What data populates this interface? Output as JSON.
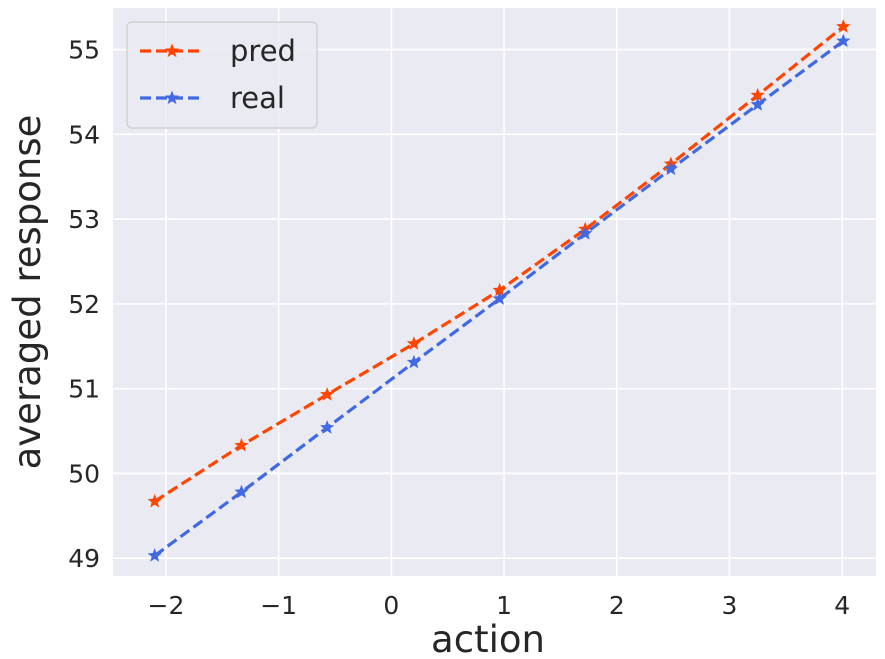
{
  "chart_data": {
    "type": "line",
    "xlabel": "action",
    "ylabel": "averaged response",
    "xlim": [
      -2.47,
      4.3
    ],
    "ylim": [
      48.79,
      55.49
    ],
    "xticks": [
      -2,
      -1,
      0,
      1,
      2,
      3,
      4
    ],
    "xtick_labels": [
      "−2",
      "−1",
      "0",
      "1",
      "2",
      "3",
      "4"
    ],
    "yticks": [
      49,
      50,
      51,
      52,
      53,
      54,
      55
    ],
    "ytick_labels": [
      "49",
      "50",
      "51",
      "52",
      "53",
      "54",
      "55"
    ],
    "grid": true,
    "legend_position": "top-left",
    "x": [
      -2.1,
      -1.33,
      -0.57,
      0.2,
      0.96,
      1.72,
      2.48,
      3.25,
      4.01
    ],
    "series": [
      {
        "name": "pred",
        "color": "#ff4500",
        "line_style": "dashed",
        "marker": "star",
        "values": [
          49.67,
          50.33,
          50.93,
          51.53,
          52.16,
          52.88,
          53.65,
          54.46,
          55.27
        ]
      },
      {
        "name": "real",
        "color": "#4169e1",
        "line_style": "dashed",
        "marker": "star",
        "values": [
          49.03,
          49.78,
          50.54,
          51.31,
          52.06,
          52.83,
          53.59,
          54.35,
          55.1
        ]
      }
    ]
  }
}
